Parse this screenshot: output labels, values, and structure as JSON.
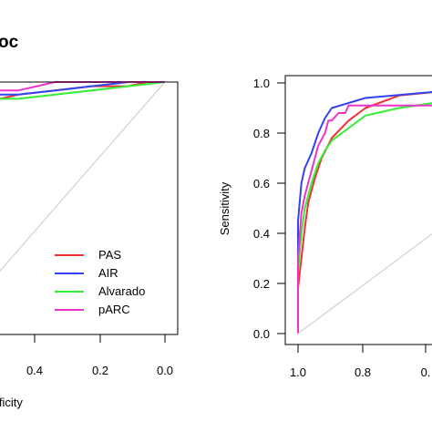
{
  "panels": [
    {
      "title": "oc",
      "xlabel": "ificity",
      "ylabel": "",
      "x_ticks": [
        "0.4",
        "0.2",
        "0.0"
      ],
      "y_ticks": [],
      "legend": [
        "PAS",
        "AIR",
        "Alvarado",
        "pARC"
      ]
    },
    {
      "title": "",
      "xlabel": "",
      "ylabel": "Sensitivity",
      "x_ticks": [
        "1.0",
        "0.8",
        "0."
      ],
      "y_ticks": [
        "0.0",
        "0.2",
        "0.4",
        "0.6",
        "0.8",
        "1.0"
      ],
      "legend": []
    }
  ],
  "colors": {
    "PAS": "#ee3333",
    "AIR": "#3344ee",
    "Alvarado": "#33ee33",
    "pARC": "#ee33cc",
    "reference": "#c8c8c8",
    "frame": "#000000"
  },
  "chart_data": [
    {
      "type": "line",
      "title": "oc",
      "xlabel": "ificity",
      "ylabel": "",
      "xlim": [
        0.0,
        0.5
      ],
      "ylim": [
        0.0,
        1.0
      ],
      "x_reversed": true,
      "grid": false,
      "legend_position": "bottom-right",
      "series": [
        {
          "name": "PAS",
          "x": [
            0.5,
            0.45,
            0.4,
            0.3,
            0.2,
            0.1,
            0.05,
            0.0
          ],
          "y": [
            0.95,
            0.96,
            0.97,
            0.98,
            0.99,
            0.99,
            1.0,
            1.0
          ]
        },
        {
          "name": "AIR",
          "x": [
            0.5,
            0.45,
            0.4,
            0.3,
            0.2,
            0.1,
            0.0
          ],
          "y": [
            0.96,
            0.97,
            0.97,
            0.98,
            0.99,
            1.0,
            1.0
          ]
        },
        {
          "name": "Alvarado",
          "x": [
            0.5,
            0.45,
            0.4,
            0.3,
            0.2,
            0.1,
            0.0
          ],
          "y": [
            0.95,
            0.96,
            0.96,
            0.97,
            0.98,
            0.99,
            1.0
          ]
        },
        {
          "name": "pARC",
          "x": [
            0.5,
            0.48,
            0.45,
            0.4,
            0.35,
            0.3,
            0.2,
            0.1,
            0.0
          ],
          "y": [
            0.96,
            0.96,
            0.98,
            0.98,
            0.99,
            1.0,
            1.0,
            1.0,
            1.0
          ]
        },
        {
          "name": "",
          "x": [
            0.5,
            0.0
          ],
          "y": [
            0.5,
            1.0
          ]
        }
      ]
    },
    {
      "type": "line",
      "title": "",
      "xlabel": "",
      "ylabel": "Sensitivity",
      "xlim": [
        0.55,
        1.0
      ],
      "ylim": [
        0.0,
        1.0
      ],
      "x_reversed": true,
      "grid": false,
      "series": [
        {
          "name": "PAS",
          "x": [
            1.0,
            1.0,
            0.99,
            0.98,
            0.97,
            0.95,
            0.93,
            0.9,
            0.85,
            0.8,
            0.7,
            0.55
          ],
          "y": [
            0.0,
            0.18,
            0.3,
            0.42,
            0.52,
            0.62,
            0.7,
            0.78,
            0.85,
            0.9,
            0.95,
            0.97
          ]
        },
        {
          "name": "AIR",
          "x": [
            1.0,
            1.0,
            0.99,
            0.98,
            0.96,
            0.94,
            0.92,
            0.9,
            0.85,
            0.8,
            0.55
          ],
          "y": [
            0.0,
            0.45,
            0.6,
            0.66,
            0.72,
            0.8,
            0.86,
            0.9,
            0.92,
            0.94,
            0.97
          ]
        },
        {
          "name": "Alvarado",
          "x": [
            1.0,
            1.0,
            0.99,
            0.98,
            0.96,
            0.94,
            0.92,
            0.9,
            0.85,
            0.8,
            0.7,
            0.55
          ],
          "y": [
            0.0,
            0.25,
            0.4,
            0.5,
            0.6,
            0.68,
            0.73,
            0.77,
            0.82,
            0.87,
            0.9,
            0.93
          ]
        },
        {
          "name": "pARC",
          "x": [
            1.0,
            1.0,
            0.99,
            0.98,
            0.96,
            0.94,
            0.92,
            0.91,
            0.9,
            0.88,
            0.86,
            0.85,
            0.55
          ],
          "y": [
            0.0,
            0.3,
            0.48,
            0.55,
            0.65,
            0.75,
            0.8,
            0.85,
            0.85,
            0.88,
            0.88,
            0.91,
            0.91
          ]
        },
        {
          "name": "",
          "x": [
            1.0,
            0.55
          ],
          "y": [
            0.0,
            0.45
          ]
        }
      ]
    }
  ]
}
